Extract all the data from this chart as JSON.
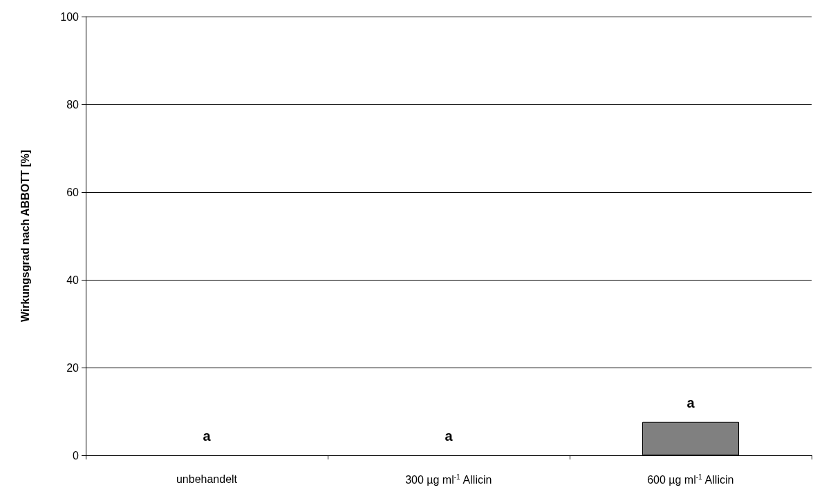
{
  "chart_data": {
    "type": "bar",
    "ylabel": "Wirkungsgrad nach ABBOTT [%]",
    "categories": [
      "unbehandelt",
      "300 µg ml$^{-1}$ Allicin",
      "600 µg ml$^{-1}$ Allicin"
    ],
    "values": [
      0,
      0,
      7.6
    ],
    "color": "#808080",
    "value_labels": [
      "a",
      "a",
      "a"
    ],
    "ylim": [
      0,
      100
    ],
    "yticks": [
      0,
      20,
      40,
      60,
      80,
      100
    ],
    "grid": "y"
  }
}
